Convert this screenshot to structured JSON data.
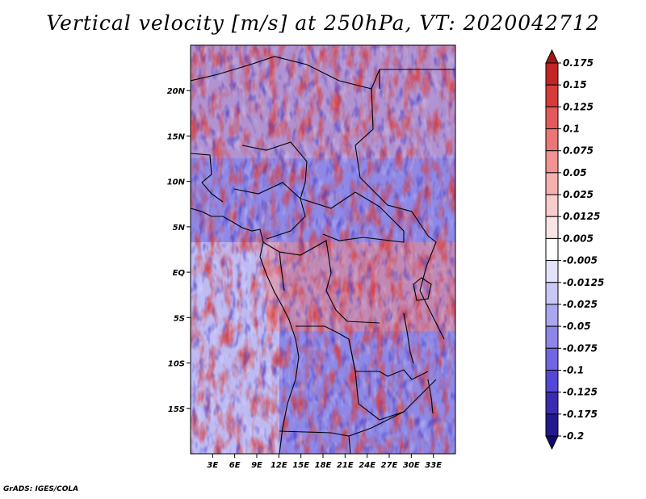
{
  "title": "Vertical velocity [m/s] at 250hPa, VT: 2020042712",
  "footer": "GrADS: IGES/COLA",
  "map": {
    "lon_range": [
      0,
      36
    ],
    "lat_range": [
      -20,
      25
    ],
    "x_ticks": [
      "3E",
      "6E",
      "9E",
      "12E",
      "15E",
      "18E",
      "21E",
      "24E",
      "27E",
      "30E",
      "33E"
    ],
    "y_ticks": [
      "20N",
      "15N",
      "10N",
      "5N",
      "EQ",
      "5S",
      "10S",
      "15S"
    ],
    "field_colors": {
      "strong_down": "#3a2bb0",
      "down": "#7b73e3",
      "weak_down": "#c9c7f5",
      "neutral": "#ffffff",
      "weak_up": "#f7c9c9",
      "up": "#ee8a8a",
      "strong_up": "#c32424"
    },
    "boundary_color": "#000000"
  },
  "colorbar": {
    "labels": [
      "0.175",
      "0.15",
      "0.125",
      "0.1",
      "0.075",
      "0.05",
      "0.025",
      "0.0125",
      "0.005",
      "-0.005",
      "-0.0125",
      "-0.025",
      "-0.05",
      "-0.075",
      "-0.1",
      "-0.125",
      "-0.175",
      "-0.2"
    ],
    "colors": [
      "#a01616",
      "#c32424",
      "#d83b3b",
      "#e45a5a",
      "#ec7676",
      "#f29292",
      "#f6b0b0",
      "#f9cccc",
      "#fbe4e4",
      "#ffffff",
      "#e3e2fb",
      "#c9c7f5",
      "#aaa6ef",
      "#8c86e8",
      "#6f67e0",
      "#5248d6",
      "#3a2bb0",
      "#24188f",
      "#150a73"
    ]
  }
}
